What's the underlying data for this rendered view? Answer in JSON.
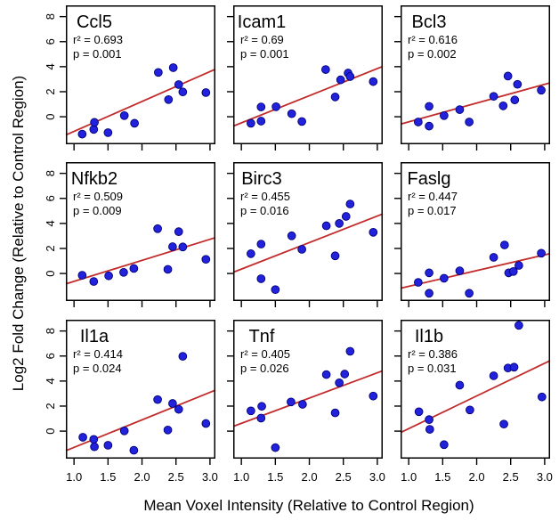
{
  "figure": {
    "background": "#ffffff",
    "colors": {
      "point_fill": "#2222dd",
      "point_edge": "#000077",
      "fit_line": "#c22b2b",
      "axis": "#000000",
      "text": "#000000"
    }
  },
  "chart_data": {
    "type": "scatter",
    "layout": "3x3-panel-grid",
    "grid": false,
    "legend": "none",
    "x_axis": {
      "title": "Mean Voxel Intensity (Relative to Control Region)",
      "ticks": [
        1.0,
        1.5,
        2.0,
        2.5,
        3.0
      ],
      "tick_labels": [
        "1.0",
        "1.5",
        "2.0",
        "2.5",
        "3.0"
      ],
      "range": [
        0.88,
        3.08
      ],
      "tick_labels_shown_on": "bottom-row-only"
    },
    "y_axis": {
      "title": "Log2 Fold Change (Relative to Control Region)",
      "ticks": [
        0,
        2,
        4,
        6,
        8
      ],
      "tick_labels": [
        "0",
        "2",
        "4",
        "6",
        "8"
      ],
      "range": [
        -2.2,
        8.9
      ],
      "tick_labels_shown_on": "left-column-only",
      "tick_label_rotation_deg": -90
    },
    "panels": [
      {
        "gene": "Ccl5",
        "r2": 0.693,
        "p": 0.001,
        "r2_label": "r² = 0.693",
        "p_label": "p = 0.001",
        "fit": {
          "slope": 2.39,
          "intercept": -3.56
        },
        "points": [
          [
            1.12,
            -1.39
          ],
          [
            1.29,
            -1.01
          ],
          [
            1.3,
            -0.45
          ],
          [
            1.5,
            -1.27
          ],
          [
            1.74,
            0.09
          ],
          [
            1.89,
            -0.52
          ],
          [
            2.24,
            3.54
          ],
          [
            2.39,
            1.37
          ],
          [
            2.46,
            3.92
          ],
          [
            2.54,
            2.57
          ],
          [
            2.6,
            1.98
          ],
          [
            2.94,
            1.93
          ]
        ]
      },
      {
        "gene": "Icam1",
        "r2": 0.69,
        "p": 0.001,
        "r2_label": "r² = 0.69",
        "p_label": "p = 0.001",
        "fit": {
          "slope": 2.17,
          "intercept": -2.66
        },
        "points": [
          [
            1.14,
            -0.52
          ],
          [
            1.29,
            0.78
          ],
          [
            1.29,
            -0.35
          ],
          [
            1.51,
            0.8
          ],
          [
            1.74,
            0.24
          ],
          [
            1.89,
            -0.38
          ],
          [
            2.24,
            3.77
          ],
          [
            2.38,
            1.58
          ],
          [
            2.46,
            2.95
          ],
          [
            2.57,
            3.49
          ],
          [
            2.6,
            3.21
          ],
          [
            2.94,
            2.81
          ]
        ]
      },
      {
        "gene": "Bcl3",
        "r2": 0.616,
        "p": 0.002,
        "r2_label": "r² = 0.616",
        "p_label": "p = 0.002",
        "fit": {
          "slope": 1.5,
          "intercept": -1.91
        },
        "points": [
          [
            1.14,
            -0.42
          ],
          [
            1.3,
            -0.75
          ],
          [
            1.3,
            0.83
          ],
          [
            1.52,
            0.09
          ],
          [
            1.75,
            0.57
          ],
          [
            1.89,
            -0.42
          ],
          [
            2.25,
            1.63
          ],
          [
            2.39,
            0.87
          ],
          [
            2.46,
            3.25
          ],
          [
            2.56,
            1.34
          ],
          [
            2.6,
            2.59
          ],
          [
            2.95,
            2.12
          ]
        ]
      },
      {
        "gene": "Nfkb2",
        "r2": 0.509,
        "p": 0.009,
        "r2_label": "r² = 0.509",
        "p_label": "p = 0.009",
        "fit": {
          "slope": 1.68,
          "intercept": -2.31
        },
        "points": [
          [
            1.12,
            -0.14
          ],
          [
            1.29,
            -0.64
          ],
          [
            1.51,
            -0.19
          ],
          [
            1.73,
            0.09
          ],
          [
            1.88,
            0.4
          ],
          [
            2.23,
            3.58
          ],
          [
            2.38,
            0.33
          ],
          [
            2.45,
            2.14
          ],
          [
            2.54,
            3.34
          ],
          [
            2.6,
            2.12
          ],
          [
            2.94,
            1.13
          ]
        ]
      },
      {
        "gene": "Birc3",
        "r2": 0.455,
        "p": 0.016,
        "r2_label": "r² = 0.455",
        "p_label": "p = 0.016",
        "fit": {
          "slope": 2.12,
          "intercept": -1.77
        },
        "points": [
          [
            1.14,
            1.58
          ],
          [
            1.29,
            2.35
          ],
          [
            1.29,
            -0.42
          ],
          [
            1.5,
            -1.29
          ],
          [
            1.74,
            3.01
          ],
          [
            1.89,
            1.93
          ],
          [
            2.25,
            3.81
          ],
          [
            2.38,
            1.41
          ],
          [
            2.44,
            4.0
          ],
          [
            2.54,
            4.56
          ],
          [
            2.6,
            5.55
          ],
          [
            2.94,
            3.29
          ]
        ]
      },
      {
        "gene": "Faslg",
        "r2": 0.447,
        "p": 0.017,
        "r2_label": "r² = 0.447",
        "p_label": "p = 0.017",
        "fit": {
          "slope": 1.26,
          "intercept": -2.29
        },
        "points": [
          [
            1.14,
            -0.71
          ],
          [
            1.3,
            0.05
          ],
          [
            1.3,
            -1.58
          ],
          [
            1.52,
            -0.38
          ],
          [
            1.75,
            0.21
          ],
          [
            1.89,
            -1.58
          ],
          [
            2.25,
            1.29
          ],
          [
            2.41,
            2.28
          ],
          [
            2.47,
            0.05
          ],
          [
            2.54,
            0.16
          ],
          [
            2.62,
            0.64
          ],
          [
            2.95,
            1.62
          ]
        ]
      },
      {
        "gene": "Il1a",
        "r2": 0.414,
        "p": 0.024,
        "r2_label": "r² = 0.414",
        "p_label": "p = 0.024",
        "fit": {
          "slope": 2.2,
          "intercept": -3.5
        },
        "points": [
          [
            1.13,
            -0.49
          ],
          [
            1.29,
            -0.66
          ],
          [
            1.3,
            -1.25
          ],
          [
            1.5,
            -1.13
          ],
          [
            1.74,
            0.02
          ],
          [
            1.88,
            -1.53
          ],
          [
            2.23,
            2.52
          ],
          [
            2.38,
            0.09
          ],
          [
            2.45,
            2.21
          ],
          [
            2.54,
            1.74
          ],
          [
            2.6,
            5.98
          ],
          [
            2.94,
            0.61
          ]
        ]
      },
      {
        "gene": "Tnf",
        "r2": 0.405,
        "p": 0.026,
        "r2_label": "r² = 0.405",
        "p_label": "p = 0.026",
        "fit": {
          "slope": 2.02,
          "intercept": -1.4
        },
        "points": [
          [
            1.14,
            1.62
          ],
          [
            1.29,
            1.04
          ],
          [
            1.3,
            1.98
          ],
          [
            1.5,
            -1.32
          ],
          [
            1.73,
            2.33
          ],
          [
            1.9,
            2.14
          ],
          [
            2.25,
            4.52
          ],
          [
            2.38,
            1.46
          ],
          [
            2.44,
            3.86
          ],
          [
            2.52,
            4.56
          ],
          [
            2.6,
            6.38
          ],
          [
            2.94,
            2.8
          ]
        ]
      },
      {
        "gene": "Il1b",
        "r2": 0.386,
        "p": 0.031,
        "r2_label": "r² = 0.386",
        "p_label": "p = 0.031",
        "fit": {
          "slope": 2.61,
          "intercept": -2.41
        },
        "points": [
          [
            1.15,
            1.55
          ],
          [
            1.3,
            0.92
          ],
          [
            1.31,
            0.14
          ],
          [
            1.52,
            -1.08
          ],
          [
            1.75,
            3.67
          ],
          [
            1.9,
            1.69
          ],
          [
            2.25,
            4.42
          ],
          [
            2.4,
            0.56
          ],
          [
            2.46,
            5.04
          ],
          [
            2.55,
            5.11
          ],
          [
            2.62,
            8.45
          ],
          [
            2.96,
            2.73
          ]
        ]
      }
    ]
  }
}
